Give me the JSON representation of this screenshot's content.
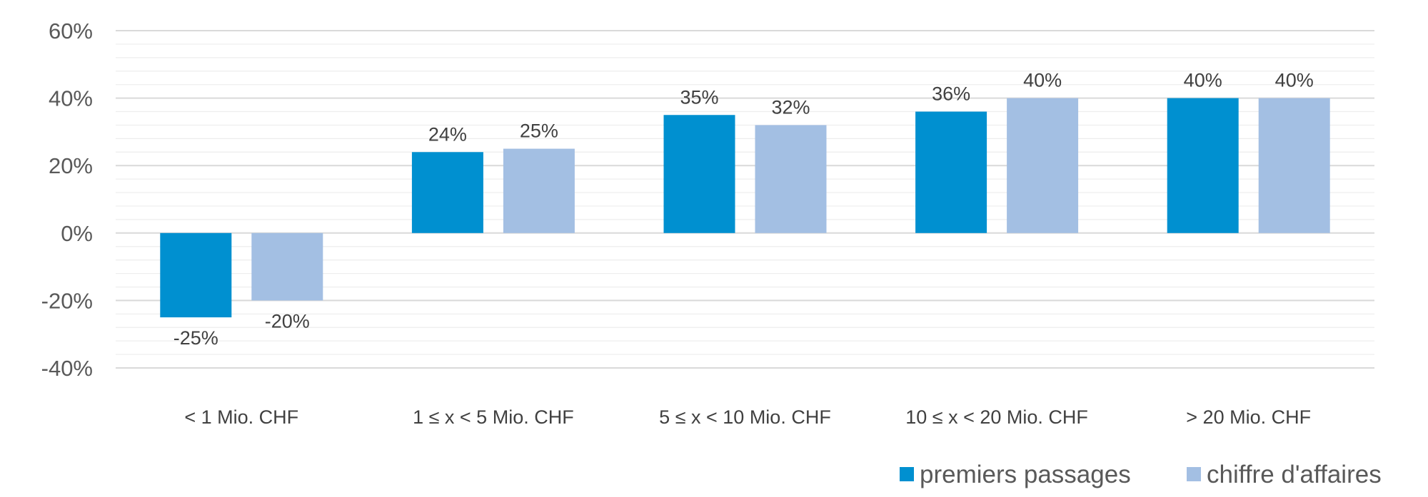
{
  "chart_data": {
    "type": "bar",
    "categories": [
      "< 1 Mio. CHF",
      "1 ≤ x < 5 Mio. CHF",
      "5 ≤ x < 10 Mio. CHF",
      "10 ≤ x < 20 Mio. CHF",
      "> 20 Mio. CHF"
    ],
    "series": [
      {
        "name": "premiers passages",
        "values": [
          -25,
          24,
          35,
          36,
          40
        ],
        "labels": [
          "-25%",
          "24%",
          "35%",
          "36%",
          "40%"
        ],
        "color": "#0090D0"
      },
      {
        "name": "chiffre d'affaires",
        "values": [
          -20,
          25,
          32,
          40,
          40
        ],
        "labels": [
          "-20%",
          "25%",
          "32%",
          "40%",
          "40%"
        ],
        "color": "#A3BFE3"
      }
    ],
    "ylim": [
      -40,
      60
    ],
    "yticks": [
      60,
      40,
      20,
      0,
      -20,
      -40
    ],
    "ytick_labels": [
      "60%",
      "40%",
      "20%",
      "0%",
      "-20%",
      "-40%"
    ],
    "grid": true,
    "legend": "bottom-right",
    "title": "",
    "xlabel": "",
    "ylabel": ""
  }
}
